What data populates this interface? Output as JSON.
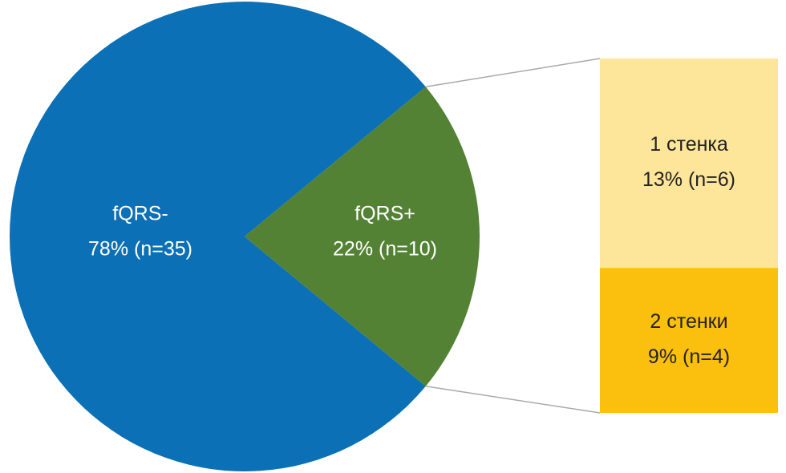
{
  "chart_data": {
    "type": "bar-of-pie",
    "pie": {
      "categories": [
        "fQRS-",
        "fQRS+"
      ],
      "values": [
        78,
        22
      ],
      "value_labels": [
        "78% (n=35)",
        "22% (n=10)"
      ],
      "colors": [
        "#0b70b5",
        "#538234"
      ]
    },
    "bar": {
      "categories": [
        "1 стенка",
        "2 стенки"
      ],
      "values": [
        13,
        9
      ],
      "value_labels": [
        "13% (n=6)",
        "9% (n=4)"
      ],
      "colors": [
        "#fde59a",
        "#fbbf0e"
      ]
    }
  }
}
